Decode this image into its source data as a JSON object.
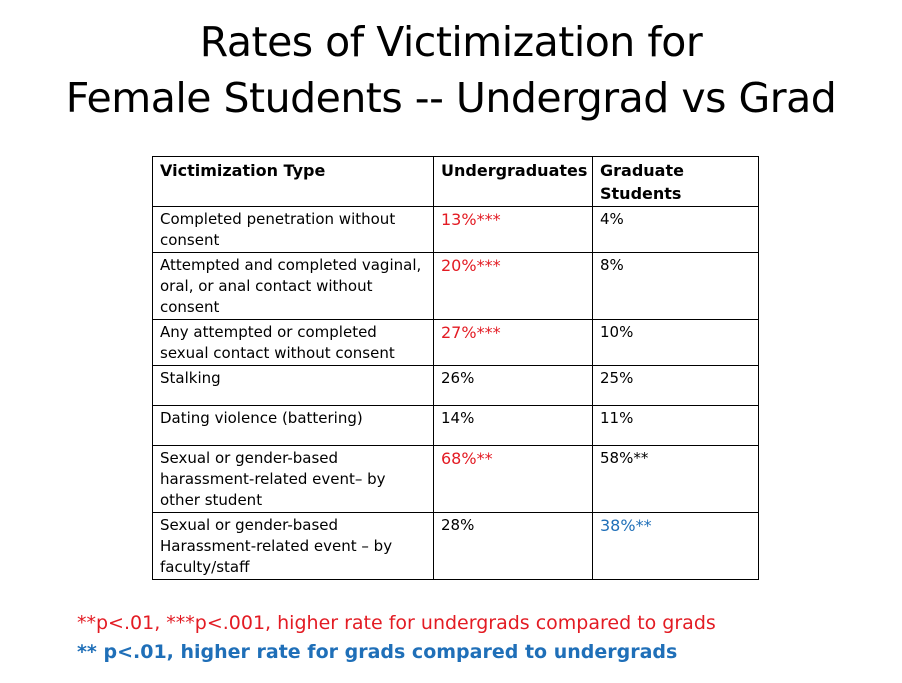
{
  "title": {
    "line1": "Rates of Victimization for",
    "line2": "Female Students --  Undergrad vs Grad"
  },
  "table": {
    "headers": [
      "Victimization Type",
      "Undergraduates",
      "Graduate Students"
    ],
    "rows": [
      {
        "type": "Completed penetration without consent",
        "undergrad": "13%***",
        "grad": "4%",
        "undergrad_sig": "red",
        "grad_sig": "none"
      },
      {
        "type": "Attempted and completed vaginal, oral, or anal contact without consent",
        "undergrad": "20%***",
        "grad": "8%",
        "undergrad_sig": "red",
        "grad_sig": "none"
      },
      {
        "type": "Any attempted or completed sexual contact without consent",
        "undergrad": "27%***",
        "grad": "10%",
        "undergrad_sig": "red",
        "grad_sig": "none"
      },
      {
        "type": "Stalking",
        "undergrad": "26%",
        "grad": "25%",
        "undergrad_sig": "none",
        "grad_sig": "none"
      },
      {
        "type": "Dating violence (battering)",
        "undergrad": "14%",
        "grad": "11%",
        "undergrad_sig": "none",
        "grad_sig": "none"
      },
      {
        "type": "Sexual or gender-based harassment-related event– by other student",
        "undergrad": "68%**",
        "grad": "58%**",
        "undergrad_sig": "red",
        "grad_sig": "none"
      },
      {
        "type": "Sexual or gender-based Harassment-related event – by faculty/staff",
        "undergrad": "28%",
        "grad": "38%**",
        "undergrad_sig": "none",
        "grad_sig": "blue"
      }
    ]
  },
  "footnotes": {
    "red": "**p<.01, ***p<.001, higher rate for undergrads compared to grads",
    "blue": "** p<.01, higher rate for grads compared to undergrads"
  },
  "colors": {
    "red": "#e31b23",
    "blue": "#1f6fb8"
  }
}
